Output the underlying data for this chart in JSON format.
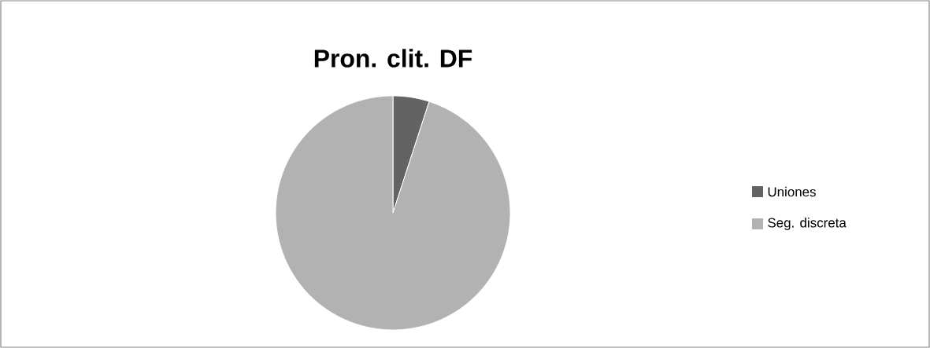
{
  "chart_data": {
    "type": "pie",
    "title": "Pron. clit. DF",
    "categories": [
      "Uniones",
      "Seg. discreta"
    ],
    "values": [
      5,
      95
    ],
    "colors": [
      "#636363",
      "#b2b2b2"
    ],
    "legend": "right"
  }
}
